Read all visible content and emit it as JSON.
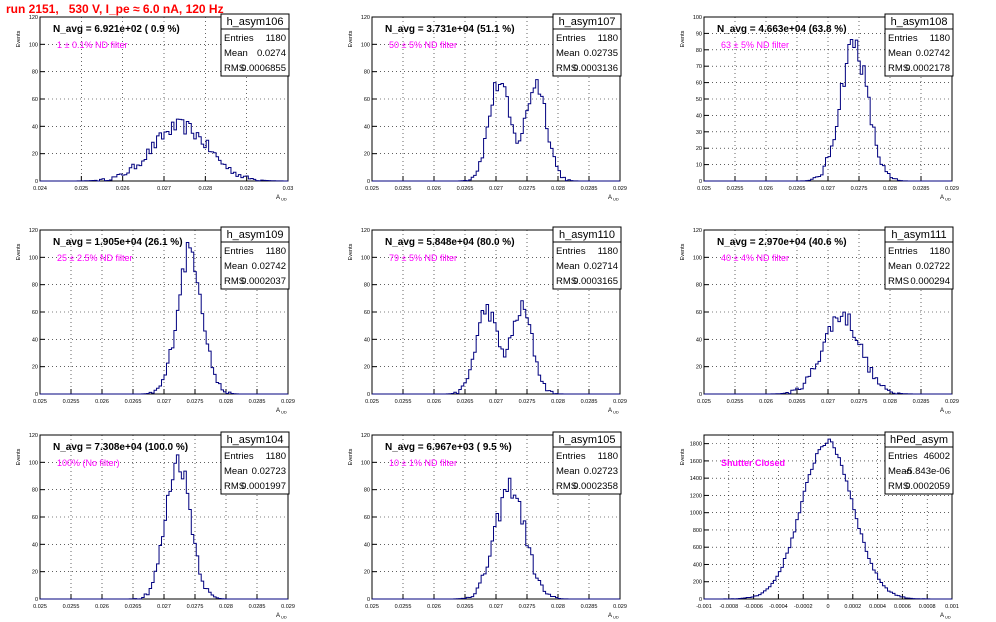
{
  "run_title": "run 2151,   530 V, I_pe ≈ 6.0 nA, 120 Hz",
  "colors": {
    "title": "#ff0000",
    "histogram": "#00007f",
    "annotation": "#ff00ff",
    "grid": "#000000"
  },
  "stats_labels": {
    "entries": "Entries",
    "mean": "Mean",
    "rms": "RMS"
  },
  "axis_labels": {
    "y": "Events",
    "x": "A",
    "x_sub": "UD"
  },
  "chart_data": [
    {
      "type": "bar",
      "name": "h_asym106",
      "navg": "N_avg = 6.921e+02 ( 0.9 %)",
      "filter": "1 ± 0.1% ND filter",
      "stats": {
        "entries": "1180",
        "mean": "0.0274",
        "rms": "0.0006855"
      },
      "xlim": [
        0.024,
        0.03
      ],
      "ylim": [
        0,
        120
      ],
      "xticks": [
        "0.024",
        "0.025",
        "0.026",
        "0.027",
        "0.028",
        "0.029",
        "0.03"
      ],
      "yticks": [
        "0",
        "20",
        "40",
        "60",
        "80",
        "100",
        "120"
      ],
      "shape": {
        "kind": "gauss",
        "center": 0.0274,
        "sigma": 0.00068,
        "peak": 40
      }
    },
    {
      "type": "bar",
      "name": "h_asym107",
      "navg": "N_avg = 3.731e+04 (51.1 %)",
      "filter": "50 ± 5% ND filter",
      "stats": {
        "entries": "1180",
        "mean": "0.02735",
        "rms": "0.0003136"
      },
      "xlim": [
        0.025,
        0.029
      ],
      "ylim": [
        0,
        120
      ],
      "xticks": [
        "0.025",
        "0.0255",
        "0.026",
        "0.0265",
        "0.027",
        "0.0275",
        "0.028",
        "0.0285",
        "0.029"
      ],
      "yticks": [
        "0",
        "20",
        "40",
        "60",
        "80",
        "100",
        "120"
      ],
      "shape": {
        "kind": "double",
        "c1": 0.02705,
        "c2": 0.02765,
        "sigma": 0.00017,
        "peak": 72
      }
    },
    {
      "type": "bar",
      "name": "h_asym108",
      "navg": "N_avg = 4.663e+04 (63.8 %)",
      "filter": "63 ± 5% ND filter",
      "stats": {
        "entries": "1180",
        "mean": "0.02742",
        "rms": "0.0002178"
      },
      "xlim": [
        0.025,
        0.029
      ],
      "ylim": [
        0,
        100
      ],
      "xticks": [
        "0.025",
        "0.0255",
        "0.026",
        "0.0265",
        "0.027",
        "0.0275",
        "0.028",
        "0.0285",
        "0.029"
      ],
      "yticks": [
        "0",
        "10",
        "20",
        "30",
        "40",
        "50",
        "60",
        "70",
        "80",
        "90",
        "100"
      ],
      "shape": {
        "kind": "gauss",
        "center": 0.02742,
        "sigma": 0.00022,
        "peak": 84
      }
    },
    {
      "type": "bar",
      "name": "h_asym109",
      "navg": "N_avg = 1.905e+04 (26.1 %)",
      "filter": "25 ± 2.5% ND filter",
      "stats": {
        "entries": "1180",
        "mean": "0.02742",
        "rms": "0.0002037"
      },
      "xlim": [
        0.025,
        0.029
      ],
      "ylim": [
        0,
        120
      ],
      "xticks": [
        "0.025",
        "0.0255",
        "0.026",
        "0.0265",
        "0.027",
        "0.0275",
        "0.028",
        "0.0285",
        "0.029"
      ],
      "yticks": [
        "0",
        "20",
        "40",
        "60",
        "80",
        "100",
        "120"
      ],
      "shape": {
        "kind": "gauss",
        "center": 0.02742,
        "sigma": 0.0002,
        "peak": 105
      }
    },
    {
      "type": "bar",
      "name": "h_asym110",
      "navg": "N_avg = 5.848e+04 (80.0 %)",
      "filter": "79 ± 5% ND filter",
      "stats": {
        "entries": "1180",
        "mean": "0.02714",
        "rms": "0.0003165"
      },
      "xlim": [
        0.025,
        0.029
      ],
      "ylim": [
        0,
        120
      ],
      "xticks": [
        "0.025",
        "0.0255",
        "0.026",
        "0.0265",
        "0.027",
        "0.0275",
        "0.028",
        "0.0285",
        "0.029"
      ],
      "yticks": [
        "0",
        "20",
        "40",
        "60",
        "80",
        "100",
        "120"
      ],
      "shape": {
        "kind": "double",
        "c1": 0.02685,
        "c2": 0.02742,
        "sigma": 0.00017,
        "peak": 62
      }
    },
    {
      "type": "bar",
      "name": "h_asym111",
      "navg": "N_avg = 2.970e+04 (40.6 %)",
      "filter": "40 ± 4% ND filter",
      "stats": {
        "entries": "1180",
        "mean": "0.02722",
        "rms": "0.000294"
      },
      "xlim": [
        0.025,
        0.029
      ],
      "ylim": [
        0,
        120
      ],
      "xticks": [
        "0.025",
        "0.0255",
        "0.026",
        "0.0265",
        "0.027",
        "0.0275",
        "0.028",
        "0.0285",
        "0.029"
      ],
      "yticks": [
        "0",
        "20",
        "40",
        "60",
        "80",
        "100",
        "120"
      ],
      "shape": {
        "kind": "gauss",
        "center": 0.02722,
        "sigma": 0.0003,
        "peak": 58
      }
    },
    {
      "type": "bar",
      "name": "h_asym104",
      "navg": "N_avg = 7.308e+04 (100.0 %)",
      "filter": "100% (No filter)",
      "stats": {
        "entries": "1180",
        "mean": "0.02723",
        "rms": "0.0001997"
      },
      "xlim": [
        0.025,
        0.029
      ],
      "ylim": [
        0,
        120
      ],
      "xticks": [
        "0.025",
        "0.0255",
        "0.026",
        "0.0265",
        "0.027",
        "0.0275",
        "0.028",
        "0.0285",
        "0.029"
      ],
      "yticks": [
        "0",
        "20",
        "40",
        "60",
        "80",
        "100",
        "120"
      ],
      "shape": {
        "kind": "gauss",
        "center": 0.02723,
        "sigma": 0.0002,
        "peak": 102
      }
    },
    {
      "type": "bar",
      "name": "h_asym105",
      "navg": "N_avg = 6.967e+03 ( 9.5 %)",
      "filter": "10 ± 1% ND filter",
      "stats": {
        "entries": "1180",
        "mean": "0.02723",
        "rms": "0.0002358"
      },
      "xlim": [
        0.025,
        0.029
      ],
      "ylim": [
        0,
        120
      ],
      "xticks": [
        "0.025",
        "0.0255",
        "0.026",
        "0.0265",
        "0.027",
        "0.0275",
        "0.028",
        "0.0285",
        "0.029"
      ],
      "yticks": [
        "0",
        "20",
        "40",
        "60",
        "80",
        "100",
        "120"
      ],
      "shape": {
        "kind": "gauss",
        "center": 0.02723,
        "sigma": 0.00024,
        "peak": 82
      }
    },
    {
      "type": "bar",
      "name": "hPed_asym",
      "navg": "",
      "filter": "Shutter Closed",
      "stats": {
        "entries": "46002",
        "mean": "-5.843e-06",
        "rms": "0.0002059"
      },
      "xlim": [
        -0.001,
        0.001
      ],
      "ylim": [
        0,
        1900
      ],
      "xticks": [
        "-0.001",
        "-0.0008",
        "-0.0006",
        "-0.0004",
        "-0.0002",
        "0",
        "0.0002",
        "0.0004",
        "0.0006",
        "0.0008",
        "0.001"
      ],
      "yticks": [
        "0",
        "200",
        "400",
        "600",
        "800",
        "1000",
        "1200",
        "1400",
        "1600",
        "1800"
      ],
      "shape": {
        "kind": "gauss",
        "center": -6e-06,
        "sigma": 0.000206,
        "peak": 1820
      }
    }
  ]
}
